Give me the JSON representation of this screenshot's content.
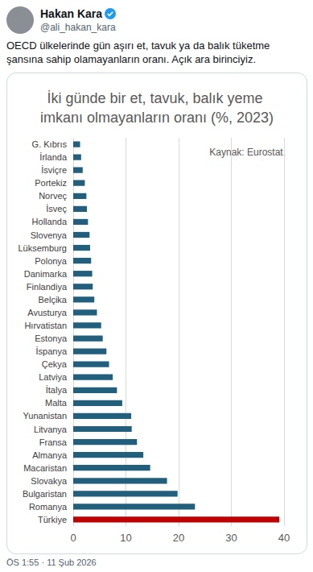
{
  "tweet": {
    "name": "Hakan Kara",
    "handle": "@ali_hakan_kara",
    "text": "OECD ülkelerinde gün aşırı et, tavuk ya da balık tüketme şansına sahip olamayanların oranı. Açık ara birinciyiz.",
    "footer": "ÖS 1:55 · 11 Şub 2026"
  },
  "chart_data": {
    "type": "bar",
    "orientation": "horizontal",
    "title": "İki günde bir et, tavuk, balık yeme imkanı olmayanların oranı (%, 2023)",
    "annotations": [
      "Kaynak: Eurostat."
    ],
    "categories": [
      "G. Kıbrıs",
      "İrlanda",
      "İsviçre",
      "Portekiz",
      "Norveç",
      "İsveç",
      "Hollanda",
      "Slovenya",
      "Lüksemburg",
      "Polonya",
      "Danimarka",
      "Finlandiya",
      "Belçika",
      "Avusturya",
      "Hırvatistan",
      "Estonya",
      "İspanya",
      "Çekya",
      "Latviya",
      "İtalya",
      "Malta",
      "Yunanistan",
      "Litvanya",
      "Fransa",
      "Almanya",
      "Macaristan",
      "Slovakya",
      "Bulgaristan",
      "Romanya",
      "Türkiye"
    ],
    "values": [
      1.3,
      1.5,
      1.8,
      2.2,
      2.5,
      2.6,
      2.8,
      3.1,
      3.2,
      3.4,
      3.6,
      3.7,
      4.0,
      4.5,
      5.3,
      5.6,
      6.3,
      6.8,
      7.5,
      8.3,
      9.3,
      11.0,
      11.1,
      12.1,
      13.3,
      14.6,
      17.8,
      19.8,
      23.1,
      39.1
    ],
    "colors": [
      "#215f7c",
      "#215f7c",
      "#215f7c",
      "#215f7c",
      "#215f7c",
      "#215f7c",
      "#215f7c",
      "#215f7c",
      "#215f7c",
      "#215f7c",
      "#215f7c",
      "#215f7c",
      "#215f7c",
      "#215f7c",
      "#215f7c",
      "#215f7c",
      "#215f7c",
      "#215f7c",
      "#215f7c",
      "#215f7c",
      "#215f7c",
      "#215f7c",
      "#215f7c",
      "#215f7c",
      "#215f7c",
      "#215f7c",
      "#215f7c",
      "#215f7c",
      "#215f7c",
      "#c00000"
    ],
    "xlim": [
      0,
      40
    ],
    "xticks": [
      0,
      10,
      20,
      30,
      40
    ],
    "grid": true
  }
}
